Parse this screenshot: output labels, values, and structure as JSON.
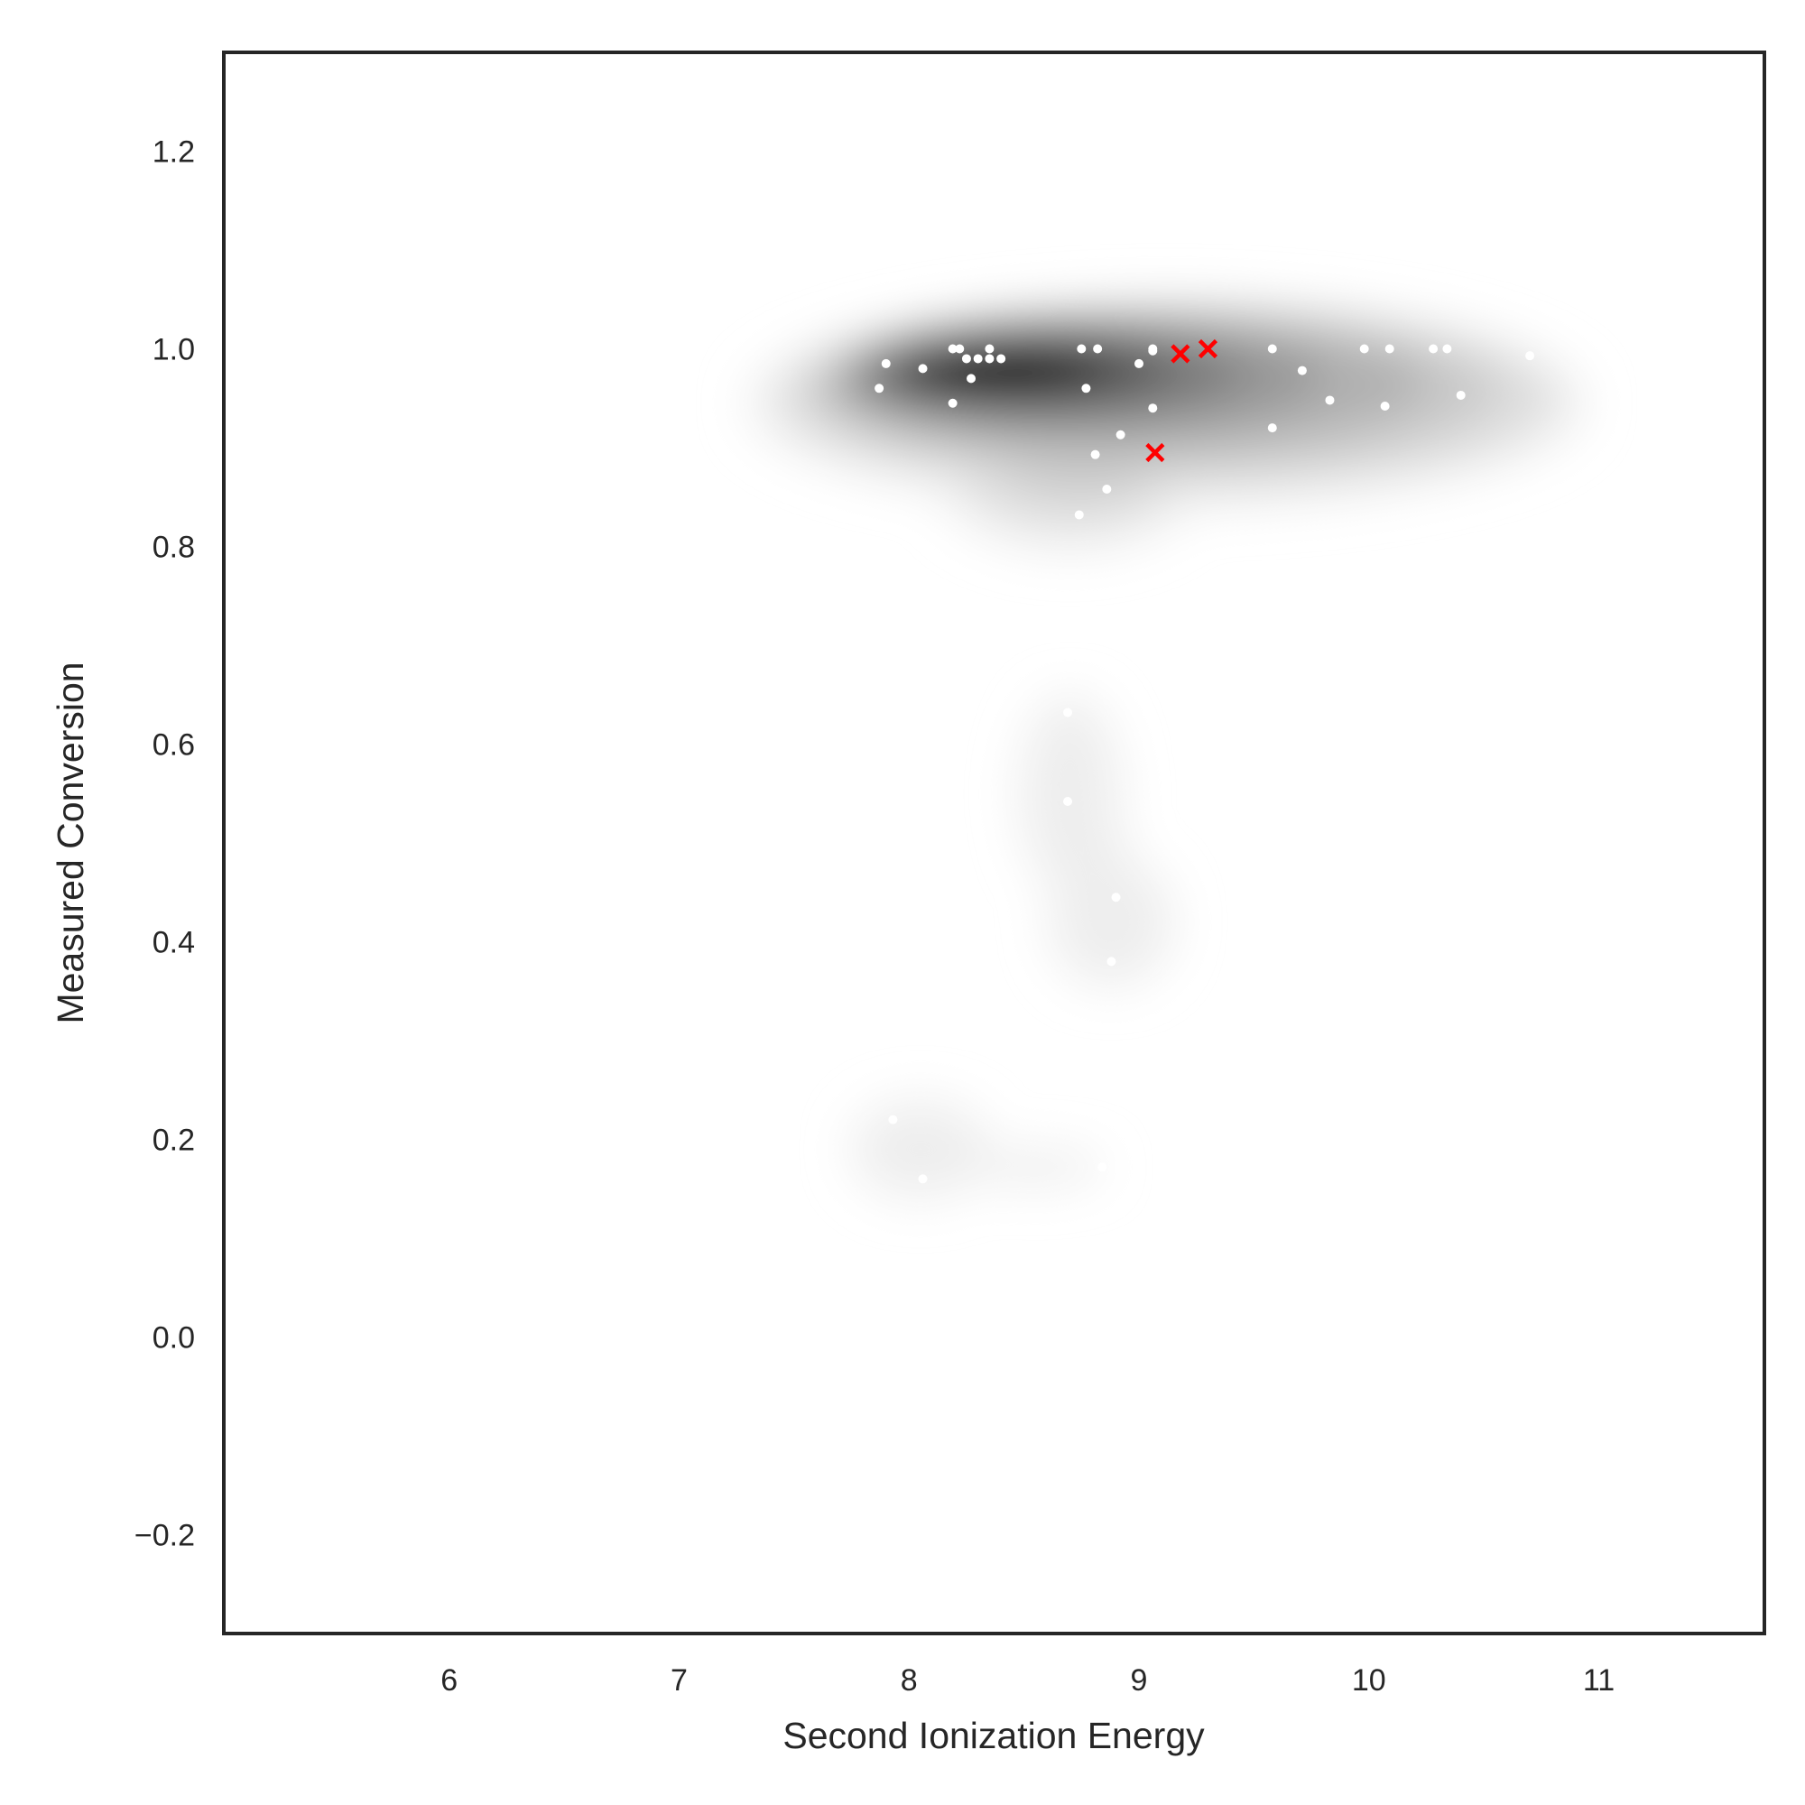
{
  "chart_data": {
    "type": "scatter",
    "title": "",
    "xlabel": "Second Ionization Energy",
    "ylabel": "Measured Conversion",
    "xlim": [
      5.02,
      11.72
    ],
    "ylim": [
      -0.3,
      1.3
    ],
    "xticks": [
      6,
      7,
      8,
      9,
      10,
      11
    ],
    "xtick_labels": [
      "6",
      "7",
      "8",
      "9",
      "10",
      "11"
    ],
    "yticks": [
      -0.2,
      0.0,
      0.2,
      0.4,
      0.6,
      0.8,
      1.0,
      1.2
    ],
    "ytick_labels": [
      "−0.2",
      "0.0",
      "0.2",
      "0.4",
      "0.6",
      "0.8",
      "1.0",
      "1.2"
    ],
    "grid": false,
    "density_background": {
      "description": "kernel density estimate shaded in greys",
      "colors": [
        "#eeeeee",
        "#dcdcdc",
        "#c8c8c8",
        "#b0b0b0",
        "#969696",
        "#7a7a7a",
        "#5a5a5a",
        "#363636",
        "#0d0d0d"
      ]
    },
    "series": [
      {
        "name": "samples",
        "marker": "dot",
        "color": "#ffffff",
        "x": [
          7.87,
          7.9,
          8.06,
          8.19,
          8.22,
          8.19,
          8.25,
          8.27,
          8.3,
          8.35,
          8.35,
          8.4,
          8.75,
          8.82,
          8.77,
          9.0,
          9.06,
          9.06,
          9.06,
          8.92,
          8.81,
          8.86,
          8.74,
          9.58,
          9.71,
          9.83,
          9.58,
          9.98,
          10.09,
          10.07,
          10.28,
          10.34,
          10.4,
          10.7,
          8.69,
          8.69,
          8.9,
          8.88,
          7.93,
          8.06,
          8.84
        ],
        "y": [
          0.96,
          0.985,
          0.98,
          0.945,
          1.0,
          1.0,
          0.99,
          0.97,
          0.99,
          1.0,
          0.99,
          0.99,
          1.0,
          1.0,
          0.96,
          0.985,
          1.0,
          0.998,
          0.94,
          0.913,
          0.893,
          0.858,
          0.832,
          1.0,
          0.978,
          0.948,
          0.92,
          1.0,
          1.0,
          0.942,
          1.0,
          1.0,
          0.953,
          0.993,
          0.632,
          0.542,
          0.445,
          0.38,
          0.22,
          0.16,
          0.172
        ]
      },
      {
        "name": "highlighted",
        "marker": "x",
        "color": "#ff0000",
        "x": [
          9.18,
          9.3,
          9.07
        ],
        "y": [
          0.995,
          1.0,
          0.895
        ]
      }
    ]
  }
}
